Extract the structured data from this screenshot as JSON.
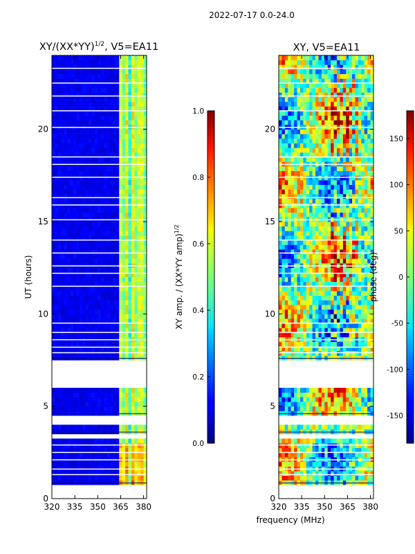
{
  "figure_title": "2022-07-17 0.0-24.0",
  "chart_data": [
    {
      "type": "heatmap",
      "title": "XY/(XX*YY)",
      "title_exponent": "1/2",
      "title_suffix": ", V5=EA11",
      "xlabel": "",
      "ylabel": "UT (hours)",
      "xlim": [
        320,
        382
      ],
      "ylim": [
        0,
        24
      ],
      "x_ticks": [
        "320",
        "335",
        "350",
        "365",
        "380"
      ],
      "y_ticks": [
        "0",
        "5",
        "10",
        "15",
        "20"
      ],
      "colorbar": {
        "label": "XY amp. / (XX*YY amp)",
        "label_exponent": "1/2",
        "range": [
          0.0,
          1.0
        ],
        "ticks": [
          "0.0",
          "0.2",
          "0.4",
          "0.6",
          "0.8",
          "1.0"
        ]
      },
      "gaps_hours": [
        [
          0,
          0.85
        ],
        [
          3.3,
          3.6
        ],
        [
          4.1,
          4.6
        ],
        [
          6.0,
          7.6
        ]
      ],
      "bright_band_mhz": [
        363,
        381
      ],
      "colormap": "jet"
    },
    {
      "type": "heatmap",
      "title": "XY, V5=EA11",
      "xlabel": "frequency (MHz)",
      "ylabel": "",
      "xlim": [
        320,
        382
      ],
      "ylim": [
        0,
        24
      ],
      "x_ticks": [
        "320",
        "335",
        "350",
        "365",
        "380"
      ],
      "y_ticks": [
        "0",
        "5",
        "10",
        "15",
        "20"
      ],
      "colorbar": {
        "label": "phase (deg)",
        "range": [
          -180,
          180
        ],
        "ticks": [
          "-150",
          "-100",
          "-50",
          "0",
          "50",
          "100",
          "150"
        ]
      },
      "gaps_hours": [
        [
          0,
          0.85
        ],
        [
          3.3,
          3.6
        ],
        [
          4.1,
          4.6
        ],
        [
          6.0,
          7.6
        ]
      ],
      "colormap": "jet"
    }
  ]
}
